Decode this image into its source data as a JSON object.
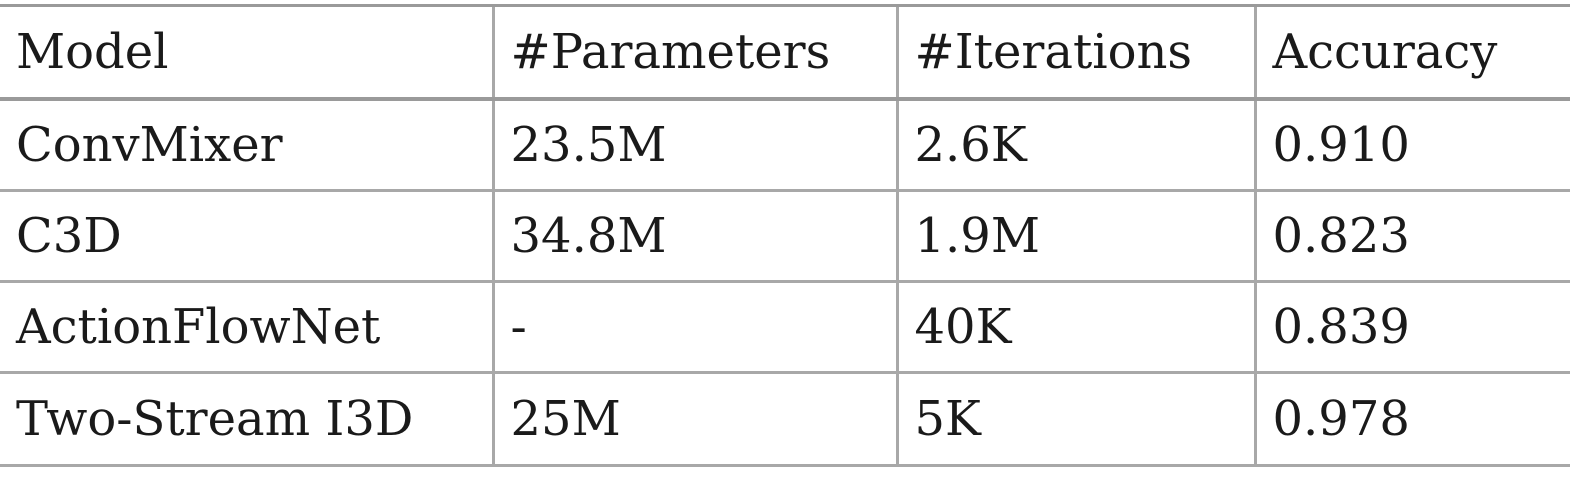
{
  "table": {
    "headers": [
      "Model",
      "#Parameters",
      "#Iterations",
      "Accuracy"
    ],
    "rows": [
      [
        "ConvMixer",
        "23.5M",
        "2.6K",
        "0.910"
      ],
      [
        "C3D",
        "34.8M",
        "1.9M",
        "0.823"
      ],
      [
        "ActionFlowNet",
        "-",
        "40K",
        "0.839"
      ],
      [
        "Two-Stream I3D",
        "25M",
        "5K",
        "0.978"
      ]
    ]
  }
}
